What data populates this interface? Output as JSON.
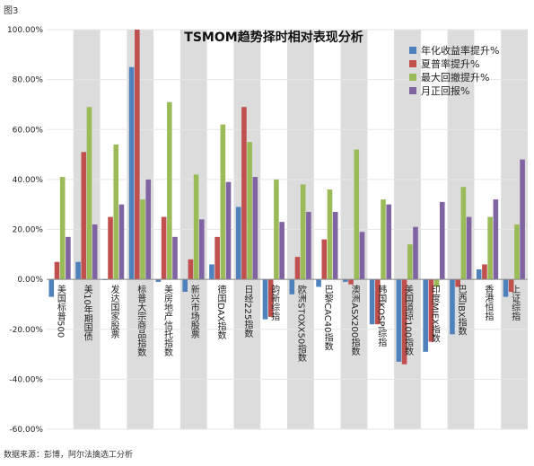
{
  "figure_label": "图3",
  "source_note": "数据来源：彭博，阿尔法擒选工分析",
  "colors": {
    "band": "#dcdcdc",
    "grid": "#e6e6e6",
    "axis": "#888888"
  },
  "chart_data": {
    "type": "bar",
    "title": "TSMOM趋势择时相对表现分析",
    "xlabel": "",
    "ylabel": "",
    "ylim": [
      -60,
      100
    ],
    "yticks": [
      "100.00%",
      "80.00%",
      "60.00%",
      "40.00%",
      "20.00%",
      "0.00%",
      "-20.00%",
      "-40.00%",
      "-60.00%"
    ],
    "grid": true,
    "legend_position": "top-right",
    "categories": [
      "美国标普500",
      "美10年期国债",
      "发达国家股票",
      "标普大宗商品指数",
      "美房地产信托指数",
      "新兴市场股票",
      "德国DAX指数",
      "日经225指数",
      "韵新综指",
      "欧洲STOXX50指数",
      "巴黎CAC40指数",
      "澳洲ASX200指数",
      "韩国KOSPI综指",
      "美国道琼100指数",
      "印度MIEX指数",
      "巴西IBX指数",
      "香港恒指",
      "上证综指"
    ],
    "series": [
      {
        "name": "年化收益率提升%",
        "color": "#4f81bd",
        "values": [
          -7,
          7,
          0,
          85,
          -1,
          -5,
          6,
          29,
          -16,
          -6,
          -3,
          -1,
          -18,
          -33,
          -29,
          -22,
          4,
          -7
        ]
      },
      {
        "name": "夏普率提升%",
        "color": "#c0504d",
        "values": [
          7,
          51,
          25,
          100,
          25,
          8,
          17,
          69,
          -15,
          9,
          16,
          -2,
          -18,
          -34,
          -25,
          -3,
          6,
          -5
        ]
      },
      {
        "name": "最大回撤提升%",
        "color": "#9bbb59",
        "values": [
          41,
          69,
          54,
          32,
          71,
          42,
          62,
          55,
          40,
          38,
          36,
          52,
          32,
          14,
          -3,
          37,
          25,
          22
        ]
      },
      {
        "name": "月正回报%",
        "color": "#8064a2",
        "values": [
          17,
          22,
          30,
          40,
          17,
          24,
          39,
          41,
          23,
          27,
          27,
          19,
          30,
          21,
          31,
          25,
          32,
          48
        ]
      }
    ]
  }
}
